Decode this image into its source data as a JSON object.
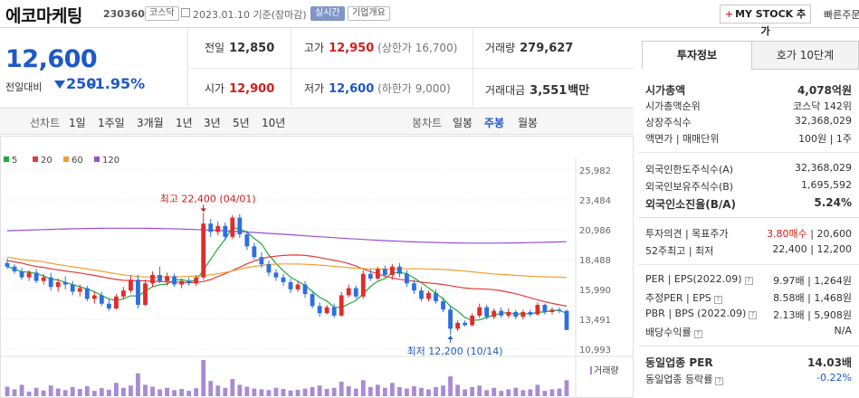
{
  "header": {
    "name": "에코마케팅",
    "code": "230360",
    "market": "코스닥",
    "date": "2023.01.10",
    "basis": "기준(장마감)",
    "realtime": "실시간",
    "company_info": "기업개요",
    "mystock_label": "MY STOCK 추가",
    "quick_order": "빠른주문"
  },
  "price": {
    "current": "12,600",
    "vs_label": "전일대비",
    "change": "250",
    "change_pct": "-1.95%"
  },
  "summary": {
    "prev_label": "전일",
    "prev": "12,850",
    "high_label": "고가",
    "high": "12,950",
    "upper_limit": "(상한가 16,700)",
    "volume_label": "거래량",
    "volume": "279,627",
    "open_label": "시가",
    "open": "12,900",
    "low_label": "저가",
    "low": "12,600",
    "lower_limit": "(하한가 9,000)",
    "amount_label": "거래대금",
    "amount": "3,551",
    "amount_unit": "백만"
  },
  "chart_tabs": {
    "line_label": "선차트",
    "periods": [
      "1일",
      "1주일",
      "3개월",
      "1년",
      "3년",
      "5년",
      "10년"
    ],
    "candle_label": "봉차트",
    "candles": [
      "일봉",
      "주봉",
      "월봉"
    ],
    "selected_candle": "주봉"
  },
  "chart_data": {
    "type": "candlestick",
    "ma_legend": [
      "5",
      "20",
      "60",
      "120"
    ],
    "ma_colors": [
      "#22a83a",
      "#e33b3b",
      "#f0a030",
      "#9a4fd0"
    ],
    "y_ticks": [
      "25,982",
      "23,484",
      "20,986",
      "18,488",
      "15,990",
      "13,491",
      "10,993"
    ],
    "ylim": [
      10993,
      25982
    ],
    "annotations": {
      "high": "최고 22,400 (04/01)",
      "low": "최저 12,200 (10/14)"
    },
    "volume_label": "거래량",
    "candles": [
      [
        18200,
        18600,
        17700,
        17900
      ],
      [
        17900,
        18100,
        17300,
        17500
      ],
      [
        17500,
        17800,
        16800,
        17000
      ],
      [
        17000,
        17600,
        16700,
        17400
      ],
      [
        17400,
        17700,
        16500,
        16700
      ],
      [
        16700,
        17300,
        16400,
        17000
      ],
      [
        17000,
        17400,
        15900,
        16200
      ],
      [
        16200,
        16900,
        15800,
        16600
      ],
      [
        16600,
        17100,
        16000,
        16400
      ],
      [
        16400,
        16700,
        15500,
        15800
      ],
      [
        15800,
        16400,
        15400,
        16100
      ],
      [
        16100,
        16300,
        15000,
        15200
      ],
      [
        15200,
        15800,
        14800,
        15500
      ],
      [
        15500,
        15800,
        14600,
        14800
      ],
      [
        14800,
        15200,
        14200,
        14400
      ],
      [
        14400,
        15600,
        14300,
        15400
      ],
      [
        15400,
        16200,
        15200,
        15900
      ],
      [
        15900,
        17200,
        15700,
        16800
      ],
      [
        16800,
        17200,
        14400,
        14700
      ],
      [
        14700,
        16800,
        14600,
        16500
      ],
      [
        16500,
        17500,
        16200,
        17200
      ],
      [
        17200,
        17900,
        16500,
        16700
      ],
      [
        16700,
        17400,
        16300,
        17100
      ],
      [
        17100,
        17300,
        16200,
        16400
      ],
      [
        16400,
        16900,
        16100,
        16700
      ],
      [
        16700,
        17000,
        16300,
        16500
      ],
      [
        16500,
        17200,
        16300,
        17000
      ],
      [
        17000,
        22400,
        16800,
        21500
      ],
      [
        21500,
        21900,
        20400,
        20800
      ],
      [
        20800,
        21700,
        20500,
        21300
      ],
      [
        21300,
        21600,
        20100,
        20400
      ],
      [
        20400,
        22200,
        20200,
        22000
      ],
      [
        22000,
        22300,
        20300,
        20600
      ],
      [
        20600,
        20900,
        19300,
        19600
      ],
      [
        19600,
        19900,
        18500,
        18700
      ],
      [
        18700,
        19100,
        17800,
        18100
      ],
      [
        18100,
        18400,
        17100,
        17400
      ],
      [
        17400,
        17700,
        16700,
        17000
      ],
      [
        17000,
        17300,
        16300,
        16600
      ],
      [
        16600,
        16900,
        15700,
        16000
      ],
      [
        16000,
        16700,
        15800,
        16400
      ],
      [
        16400,
        16700,
        15300,
        15600
      ],
      [
        15600,
        15800,
        14400,
        14600
      ],
      [
        14600,
        14900,
        13700,
        14000
      ],
      [
        14000,
        14700,
        13900,
        14500
      ],
      [
        14500,
        14800,
        13600,
        13800
      ],
      [
        13800,
        15800,
        13700,
        15500
      ],
      [
        15500,
        16400,
        15300,
        16100
      ],
      [
        16100,
        16300,
        15200,
        15400
      ],
      [
        15400,
        17600,
        15200,
        17300
      ],
      [
        17300,
        17700,
        16700,
        16900
      ],
      [
        16900,
        17900,
        16800,
        17700
      ],
      [
        17700,
        18000,
        17000,
        17200
      ],
      [
        17200,
        18100,
        16800,
        17900
      ],
      [
        17900,
        18200,
        17000,
        17300
      ],
      [
        17300,
        17600,
        16200,
        16500
      ],
      [
        16500,
        16800,
        15600,
        15900
      ],
      [
        15900,
        16200,
        15000,
        15200
      ],
      [
        15200,
        15900,
        15000,
        15700
      ],
      [
        15700,
        16000,
        14800,
        15000
      ],
      [
        15000,
        15300,
        14100,
        14300
      ],
      [
        14300,
        14600,
        12200,
        12700
      ],
      [
        12700,
        13400,
        12500,
        13200
      ],
      [
        13200,
        13400,
        12900,
        13000
      ],
      [
        13000,
        14000,
        12900,
        13800
      ],
      [
        13800,
        14800,
        13600,
        14500
      ],
      [
        14500,
        14700,
        13500,
        13700
      ],
      [
        13700,
        14400,
        13500,
        14200
      ],
      [
        14200,
        14500,
        13600,
        13800
      ],
      [
        13800,
        14400,
        13600,
        14100
      ],
      [
        14100,
        14300,
        13500,
        13700
      ],
      [
        13700,
        14300,
        13500,
        14100
      ],
      [
        14100,
        14300,
        13700,
        13900
      ],
      [
        13900,
        14900,
        13800,
        14700
      ],
      [
        14700,
        14800,
        13900,
        14100
      ],
      [
        14100,
        14500,
        13900,
        14300
      ],
      [
        14300,
        14500,
        14000,
        14200
      ],
      [
        14200,
        14300,
        12600,
        12600
      ]
    ],
    "volumes": [
      25,
      18,
      30,
      12,
      22,
      15,
      28,
      20,
      16,
      24,
      19,
      26,
      14,
      21,
      17,
      35,
      22,
      28,
      60,
      30,
      25,
      18,
      22,
      16,
      19,
      14,
      21,
      95,
      40,
      28,
      22,
      45,
      30,
      25,
      20,
      18,
      16,
      22,
      19,
      15,
      17,
      20,
      24,
      28,
      19,
      22,
      38,
      26,
      20,
      42,
      24,
      30,
      22,
      35,
      24,
      20,
      26,
      22,
      18,
      24,
      28,
      52,
      30,
      18,
      24,
      28,
      16,
      22,
      14,
      18,
      22,
      16,
      18,
      30,
      14,
      18,
      20,
      42
    ]
  },
  "info_tabs": {
    "active": "투자정보",
    "inactive": "호가 10단계"
  },
  "info": {
    "market_cap_label": "시가총액",
    "market_cap": "4,078억원",
    "cap_rank_label": "시가총액순위",
    "cap_rank": "코스닥 142위",
    "shares_label": "상장주식수",
    "shares": "32,368,029",
    "par_label": "액면가 | 매매단위",
    "par": "100원 | 1주",
    "foreign_limit_label": "외국인한도주식수(A)",
    "foreign_limit": "32,368,029",
    "foreign_hold_label": "외국인보유주식수(B)",
    "foreign_hold": "1,695,592",
    "foreign_ratio_label": "외국인소진율(B/A)",
    "foreign_ratio": "5.24%",
    "opinion_label": "투자의견 | 목표주가",
    "opinion": "3.80매수",
    "target": "20,600",
    "range_label": "52주최고 | 최저",
    "range": "22,400 | 12,200",
    "per_label": "PER | EPS(2022.09)",
    "per": "9.97배 | 1,264원",
    "fper_label": "추정PER | EPS",
    "fper": "8.58배 | 1,468원",
    "pbr_label": "PBR | BPS (2022.09)",
    "pbr": "2.13배 | 5,908원",
    "div_label": "배당수익률",
    "div": "N/A",
    "ind_per_label": "동일업종 PER",
    "ind_per": "14.03배",
    "ind_chg_label": "동일업종 등락률",
    "ind_chg": "-0.22%"
  }
}
